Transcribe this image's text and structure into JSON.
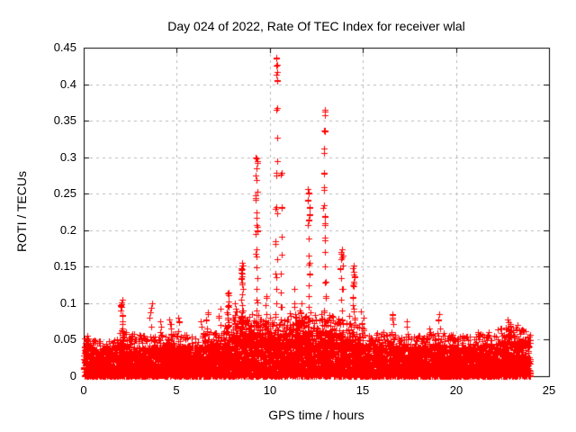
{
  "chart_data": {
    "type": "scatter",
    "title": "Day 024 of 2022, Rate Of TEC Index for receiver wlal",
    "xlabel": "GPS time / hours",
    "ylabel": "ROTI / TECUs",
    "xlim": [
      0,
      25
    ],
    "ylim": [
      0,
      0.45
    ],
    "xticks": {
      "values": [
        0,
        5,
        10,
        15,
        20,
        25
      ],
      "labels": [
        "0",
        "5",
        "10",
        "15",
        "20",
        "25"
      ]
    },
    "yticks": {
      "values": [
        0,
        0.05,
        0.1,
        0.15,
        0.2,
        0.25,
        0.3,
        0.35,
        0.4,
        0.45
      ],
      "labels": [
        "0",
        "0.05",
        "0.1",
        "0.15",
        "0.2",
        "0.25",
        "0.3",
        "0.35",
        "0.4",
        "0.45"
      ]
    },
    "grid": true,
    "legend": "none",
    "marker": "plus",
    "marker_color": "#ff0000",
    "grid_color": "#b8b8b8",
    "axis_color": "#000000",
    "text_color": "#000000",
    "data_time_span_hours": [
      0,
      24
    ],
    "baseline_band": {
      "description": "dense band of ROTI points between 0 and ~0.04-0.06 TECUs across all 24 hours",
      "hourly_max": [
        0.042,
        0.035,
        0.045,
        0.04,
        0.04,
        0.042,
        0.04,
        0.045,
        0.055,
        0.06,
        0.055,
        0.058,
        0.06,
        0.062,
        0.055,
        0.042,
        0.045,
        0.04,
        0.04,
        0.045,
        0.04,
        0.04,
        0.046,
        0.05
      ]
    },
    "spikes": [
      {
        "t": 0.15,
        "values": [
          0.05,
          0.046,
          0.043
        ]
      },
      {
        "t": 2.05,
        "values": [
          0.105,
          0.101,
          0.098,
          0.095,
          0.09,
          0.084,
          0.075,
          0.065
        ]
      },
      {
        "t": 3.6,
        "values": [
          0.1,
          0.094,
          0.088,
          0.08,
          0.068
        ]
      },
      {
        "t": 4.1,
        "values": [
          0.075,
          0.068,
          0.06
        ]
      },
      {
        "t": 4.65,
        "values": [
          0.078,
          0.072,
          0.065,
          0.057
        ]
      },
      {
        "t": 5.1,
        "values": [
          0.08,
          0.075,
          0.062
        ]
      },
      {
        "t": 5.55,
        "values": [
          0.057,
          0.053
        ]
      },
      {
        "t": 6.3,
        "values": [
          0.075,
          0.068
        ]
      },
      {
        "t": 6.6,
        "values": [
          0.088,
          0.078,
          0.065
        ]
      },
      {
        "t": 7.3,
        "values": [
          0.092,
          0.082,
          0.07
        ]
      },
      {
        "t": 7.75,
        "values": [
          0.115,
          0.111,
          0.102,
          0.098,
          0.096,
          0.088,
          0.08,
          0.07,
          0.062
        ]
      },
      {
        "t": 8.15,
        "values": [
          0.1,
          0.092,
          0.084,
          0.076
        ]
      },
      {
        "t": 8.5,
        "values": [
          0.155,
          0.152,
          0.148,
          0.145,
          0.14,
          0.137,
          0.133,
          0.128,
          0.12,
          0.112,
          0.105,
          0.098,
          0.09,
          0.082,
          0.075,
          0.068,
          0.06
        ]
      },
      {
        "t": 9.3,
        "values": [
          0.3,
          0.295,
          0.285,
          0.275,
          0.269,
          0.253,
          0.248,
          0.242,
          0.225,
          0.217,
          0.207,
          0.2,
          0.195,
          0.174,
          0.168,
          0.149,
          0.135,
          0.12,
          0.105,
          0.09,
          0.075,
          0.06
        ]
      },
      {
        "t": 9.8,
        "values": [
          0.11,
          0.098,
          0.085,
          0.072
        ]
      },
      {
        "t": 10.35,
        "values": [
          0.437,
          0.427,
          0.417,
          0.406,
          0.367,
          0.327,
          0.295,
          0.279,
          0.232,
          0.229,
          0.223,
          0.185,
          0.16,
          0.14,
          0.12,
          0.1,
          0.085,
          0.07
        ]
      },
      {
        "t": 10.6,
        "values": [
          0.279,
          0.232,
          0.191,
          0.166,
          0.14,
          0.115,
          0.095
        ]
      },
      {
        "t": 11.3,
        "values": [
          0.12,
          0.1,
          0.095,
          0.085,
          0.07
        ]
      },
      {
        "t": 11.65,
        "values": [
          0.1,
          0.088,
          0.075
        ]
      },
      {
        "t": 12.1,
        "values": [
          0.256,
          0.252,
          0.242,
          0.232,
          0.222,
          0.215,
          0.207,
          0.189,
          0.165,
          0.155,
          0.14,
          0.125,
          0.11,
          0.095,
          0.08,
          0.068
        ]
      },
      {
        "t": 12.95,
        "values": [
          0.365,
          0.358,
          0.337,
          0.335,
          0.312,
          0.306,
          0.279,
          0.259,
          0.234,
          0.22,
          0.21,
          0.19,
          0.17,
          0.15,
          0.13,
          0.11,
          0.09,
          0.075
        ]
      },
      {
        "t": 13.85,
        "values": [
          0.174,
          0.17,
          0.165,
          0.16,
          0.152,
          0.148,
          0.135,
          0.12,
          0.105,
          0.09,
          0.078
        ]
      },
      {
        "t": 14.5,
        "values": [
          0.152,
          0.143,
          0.137,
          0.13,
          0.125,
          0.108,
          0.098,
          0.092,
          0.08,
          0.07
        ]
      },
      {
        "t": 15.0,
        "values": [
          0.08,
          0.073,
          0.065
        ]
      },
      {
        "t": 16.6,
        "values": [
          0.085,
          0.08,
          0.072,
          0.06
        ]
      },
      {
        "t": 17.4,
        "values": [
          0.075,
          0.068,
          0.058
        ]
      },
      {
        "t": 18.6,
        "values": [
          0.065,
          0.058
        ]
      },
      {
        "t": 19.1,
        "values": [
          0.085,
          0.078,
          0.065,
          0.055
        ]
      },
      {
        "t": 21.2,
        "values": [
          0.06,
          0.054
        ]
      },
      {
        "t": 22.85,
        "values": [
          0.078,
          0.072,
          0.065,
          0.058
        ]
      },
      {
        "t": 23.4,
        "values": [
          0.058,
          0.052
        ]
      }
    ]
  }
}
